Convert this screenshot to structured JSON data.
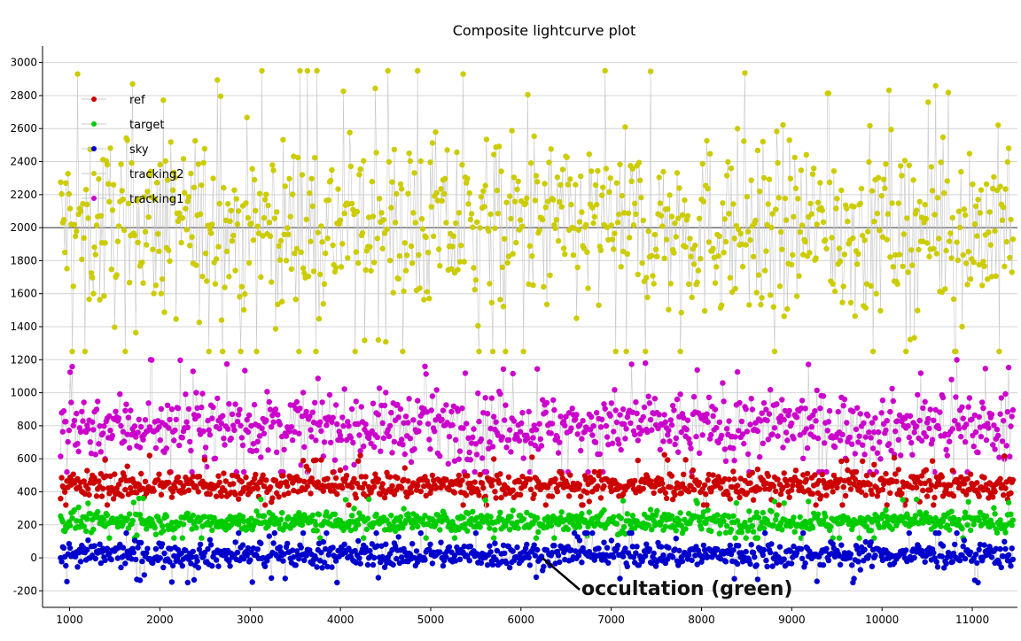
{
  "chart_data": {
    "type": "scatter",
    "title": "Composite lightcurve plot",
    "xlabel": "",
    "ylabel": "",
    "xlim": [
      700,
      11500
    ],
    "ylim": [
      -300,
      3100
    ],
    "x_ticks": [
      1000,
      2000,
      3000,
      4000,
      5000,
      6000,
      7000,
      8000,
      9000,
      10000,
      11000
    ],
    "y_ticks": [
      -200,
      0,
      200,
      400,
      600,
      800,
      1000,
      1200,
      1400,
      1600,
      1800,
      2000,
      2200,
      2400,
      2600,
      2800,
      3000
    ],
    "x_range_of_points": [
      900,
      11450
    ],
    "reference_line_y": 2000,
    "grid": "horizontal",
    "legend_placement": "top-left",
    "series": [
      {
        "name": "ref",
        "color": "#cc0000",
        "typical_range": [
          320,
          640
        ],
        "mean": 440
      },
      {
        "name": "target",
        "color": "#00cc00",
        "typical_range": [
          120,
          360
        ],
        "mean": 220
      },
      {
        "name": "sky",
        "color": "#0000cc",
        "typical_range": [
          -150,
          150
        ],
        "mean": 20
      },
      {
        "name": "tracking2",
        "color": "#cccc00",
        "typical_range": [
          1250,
          2950
        ],
        "mean": 2000
      },
      {
        "name": "tracking1",
        "color": "#cc00cc",
        "typical_range": [
          520,
          1200
        ],
        "mean": 800
      }
    ],
    "legend_entries": [
      "ref",
      "target",
      "sky",
      "tracking2",
      "tracking1"
    ],
    "annotation": {
      "text": "occultation (green)",
      "x": 6200,
      "y": 20
    }
  }
}
